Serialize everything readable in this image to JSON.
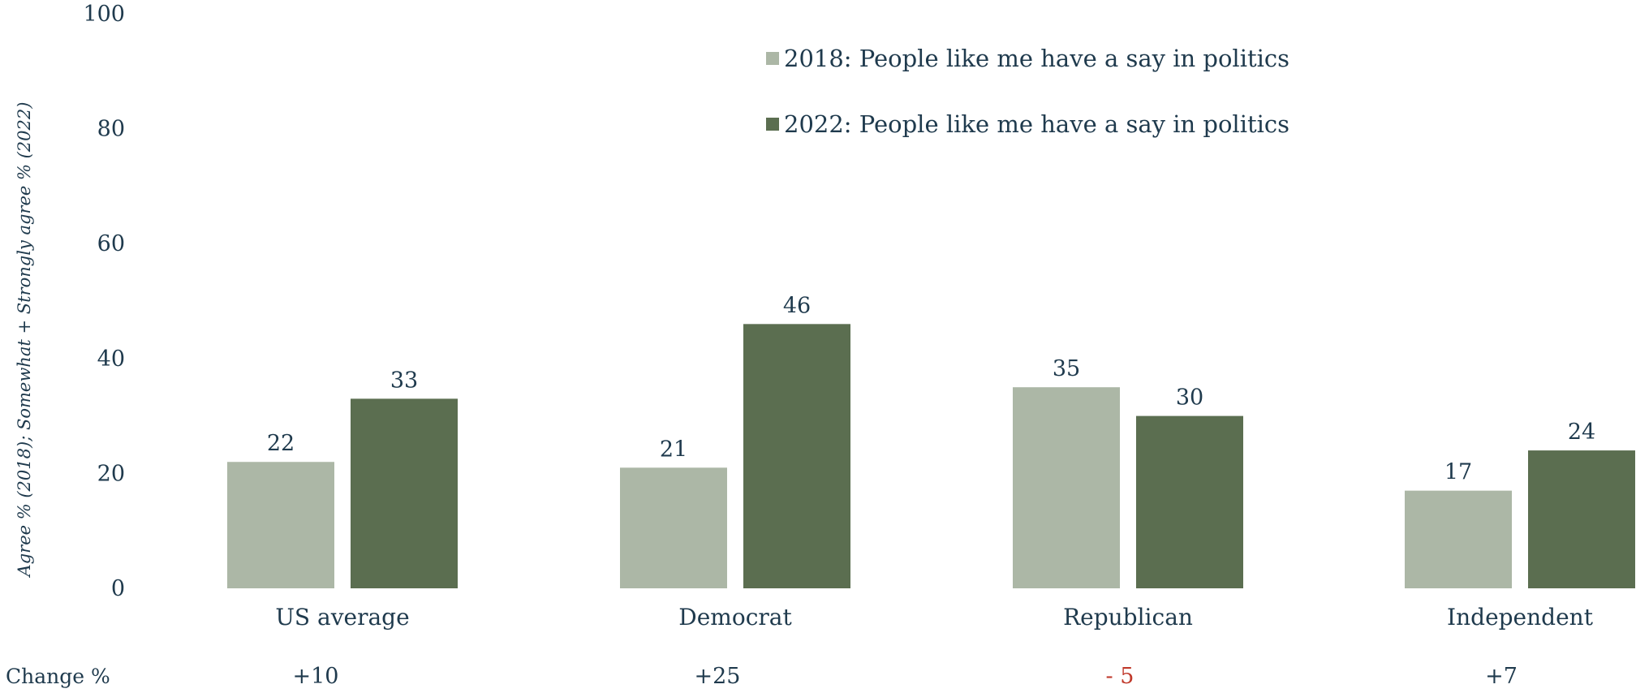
{
  "chart_data": {
    "type": "bar",
    "categories": [
      "US average",
      "Democrat",
      "Republican",
      "Independent"
    ],
    "series": [
      {
        "name": "2018: People like me have a say in politics",
        "values": [
          22,
          21,
          35,
          17
        ],
        "color": "#acb7a6"
      },
      {
        "name": "2022: People like me have a say in politics",
        "values": [
          33,
          46,
          30,
          24
        ],
        "color": "#5b6e50"
      }
    ],
    "ylabel": "Agree % (2018); Somewhat + Strongly agree % (2022)",
    "ylim": [
      0,
      100
    ],
    "yticks": [
      0,
      20,
      40,
      60,
      80,
      100
    ],
    "legend_position": "top-center",
    "grid": false,
    "change_row": {
      "label": "Change %",
      "values": [
        "+10",
        "+25",
        "- 5",
        "+7"
      ],
      "colors": [
        "#1f3a4d",
        "#1f3a4d",
        "#c0392b",
        "#1f3a4d"
      ]
    }
  }
}
